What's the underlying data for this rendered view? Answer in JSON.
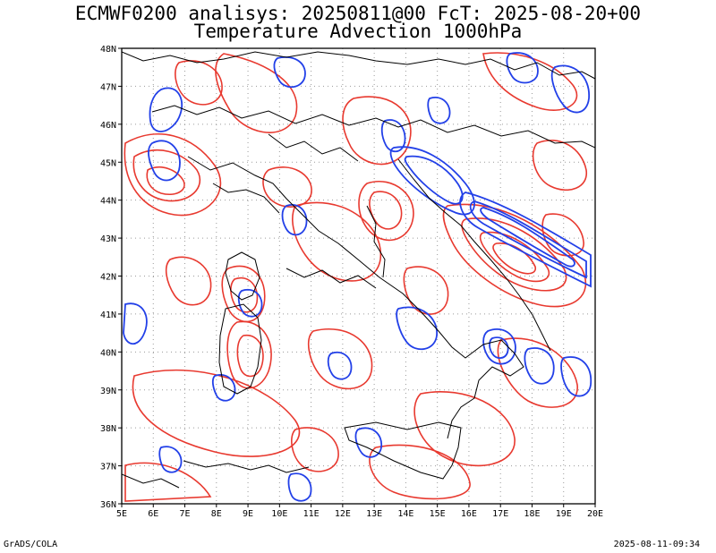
{
  "title": {
    "line1": "ECMWF0200 analisys: 20250811@00 FcT: 2025-08-20+00",
    "line2": "Temperature Advection 1000hPa"
  },
  "footer": {
    "left": "GrADS/COLA",
    "right": "2025-08-11-09:34"
  },
  "map": {
    "lon_range": [
      5,
      20
    ],
    "lat_range": [
      36,
      48
    ],
    "lon_labels": [
      "5E",
      "6E",
      "7E",
      "8E",
      "9E",
      "10E",
      "11E",
      "12E",
      "13E",
      "14E",
      "15E",
      "16E",
      "17E",
      "18E",
      "19E",
      "20E"
    ],
    "lat_labels": [
      "36N",
      "37N",
      "38N",
      "39N",
      "40N",
      "41N",
      "42N",
      "43N",
      "44N",
      "45N",
      "46N",
      "47N",
      "48N"
    ],
    "grid": "dotted",
    "colors": {
      "positive": "#e8392f",
      "negative": "#2240e8",
      "coast": "#000000",
      "grid": "#9a9a9a"
    }
  }
}
